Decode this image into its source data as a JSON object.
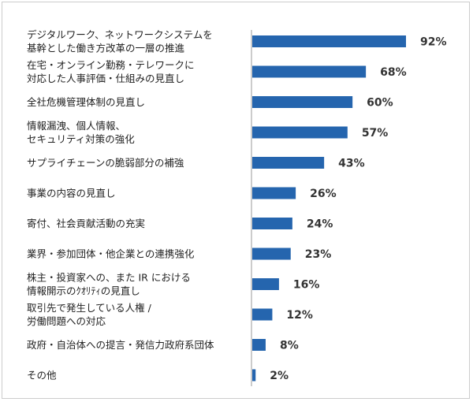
{
  "chart_data": {
    "type": "bar",
    "orientation": "horizontal",
    "title": "",
    "xlabel": "",
    "ylabel": "",
    "xlim": [
      0,
      100
    ],
    "bar_color": "#2565ae",
    "categories": [
      [
        "デジタルワーク、ネットワークシステムを",
        "基幹とした働き方改革の一層の推進"
      ],
      [
        "在宅・オンライン勤務・テレワークに",
        "対応した人事評価・仕組みの見直し"
      ],
      [
        "全社危機管理体制の見直し"
      ],
      [
        "情報漏洩、個人情報、",
        "セキュリティ対策の強化"
      ],
      [
        "サプライチェーンの脆弱部分の補強"
      ],
      [
        "事業の内容の見直し"
      ],
      [
        "寄付、社会貢献活動の充実"
      ],
      [
        "業界・参加団体・他企業との連携強化"
      ],
      [
        "株主・投資家への、また IR における",
        "情報開示のｸｵﾘﾃｨの見直し"
      ],
      [
        "取引先で発生している人権 /",
        "労働問題への対応"
      ],
      [
        "政府・自治体への提言・発信力政府系団体"
      ],
      [
        "その他"
      ]
    ],
    "values": [
      92,
      68,
      60,
      57,
      43,
      26,
      24,
      23,
      16,
      12,
      8,
      2
    ],
    "value_labels": [
      "92%",
      "68%",
      "60%",
      "57%",
      "43%",
      "26%",
      "24%",
      "23%",
      "16%",
      "12%",
      "8%",
      "2%"
    ]
  }
}
